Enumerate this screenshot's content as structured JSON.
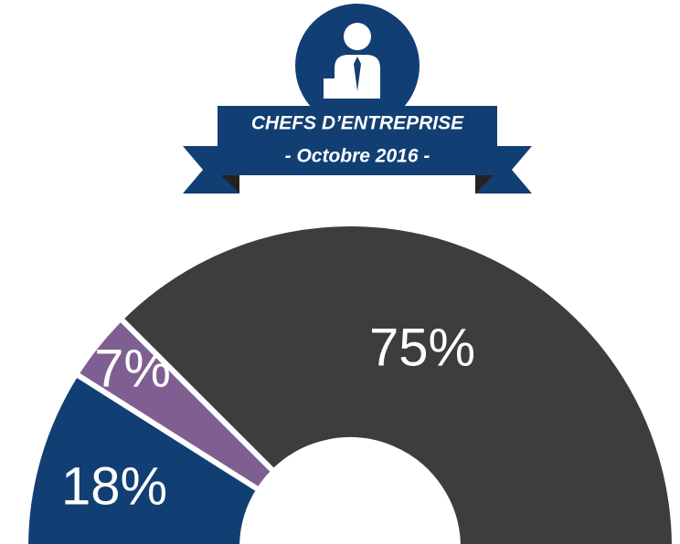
{
  "chart_data": {
    "type": "pie",
    "shape": "half-donut",
    "header": {
      "title": "CHEFS D’ENTREPRISE",
      "subtitle": "- Octobre 2016 -"
    },
    "values": [
      18,
      7,
      75
    ],
    "value_labels": [
      "18%",
      "7%",
      "75%"
    ],
    "colors": [
      "#123f73",
      "#7f5f91",
      "#3d3d3d"
    ]
  }
}
